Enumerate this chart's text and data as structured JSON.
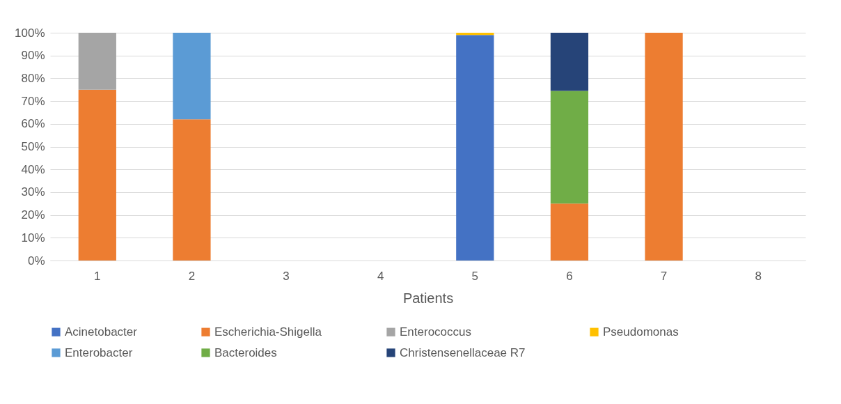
{
  "chart_data": {
    "type": "bar",
    "stacked": true,
    "xlabel": "Patients",
    "categories": [
      "1",
      "2",
      "3",
      "4",
      "5",
      "6",
      "7",
      "8"
    ],
    "series": [
      {
        "name": "Acinetobacter",
        "color": "#4472c4",
        "values": [
          null,
          null,
          null,
          null,
          99,
          null,
          null,
          null
        ]
      },
      {
        "name": "Escherichia-Shigella",
        "color": "#ed7d31",
        "values": [
          75,
          62,
          null,
          null,
          null,
          25,
          100,
          null
        ]
      },
      {
        "name": "Enterococcus",
        "color": "#a5a5a5",
        "values": [
          25,
          null,
          null,
          null,
          null,
          null,
          null,
          null
        ]
      },
      {
        "name": "Pseudomonas",
        "color": "#ffc000",
        "values": [
          null,
          null,
          null,
          null,
          1,
          null,
          null,
          null
        ]
      },
      {
        "name": "Enterobacter",
        "color": "#5b9bd5",
        "values": [
          null,
          38,
          null,
          null,
          null,
          null,
          null,
          null
        ]
      },
      {
        "name": "Bacteroides",
        "color": "#70ad47",
        "values": [
          null,
          null,
          null,
          null,
          null,
          49.5,
          null,
          null
        ]
      },
      {
        "name": "Christensenellaceae R7",
        "color": "#264478",
        "values": [
          null,
          null,
          null,
          null,
          null,
          25.5,
          null,
          null
        ]
      }
    ],
    "ylim": [
      0,
      100
    ],
    "yticks": [
      {
        "value": 0,
        "label": "0%"
      },
      {
        "value": 10,
        "label": "10%"
      },
      {
        "value": 20,
        "label": "20%"
      },
      {
        "value": 30,
        "label": "30%"
      },
      {
        "value": 40,
        "label": "40%"
      },
      {
        "value": 50,
        "label": "50%"
      },
      {
        "value": 60,
        "label": "60%"
      },
      {
        "value": 70,
        "label": "70%"
      },
      {
        "value": 80,
        "label": "80%"
      },
      {
        "value": 90,
        "label": "90%"
      },
      {
        "value": 100,
        "label": "100%"
      }
    ],
    "grid": "y",
    "legend": "bottom"
  }
}
